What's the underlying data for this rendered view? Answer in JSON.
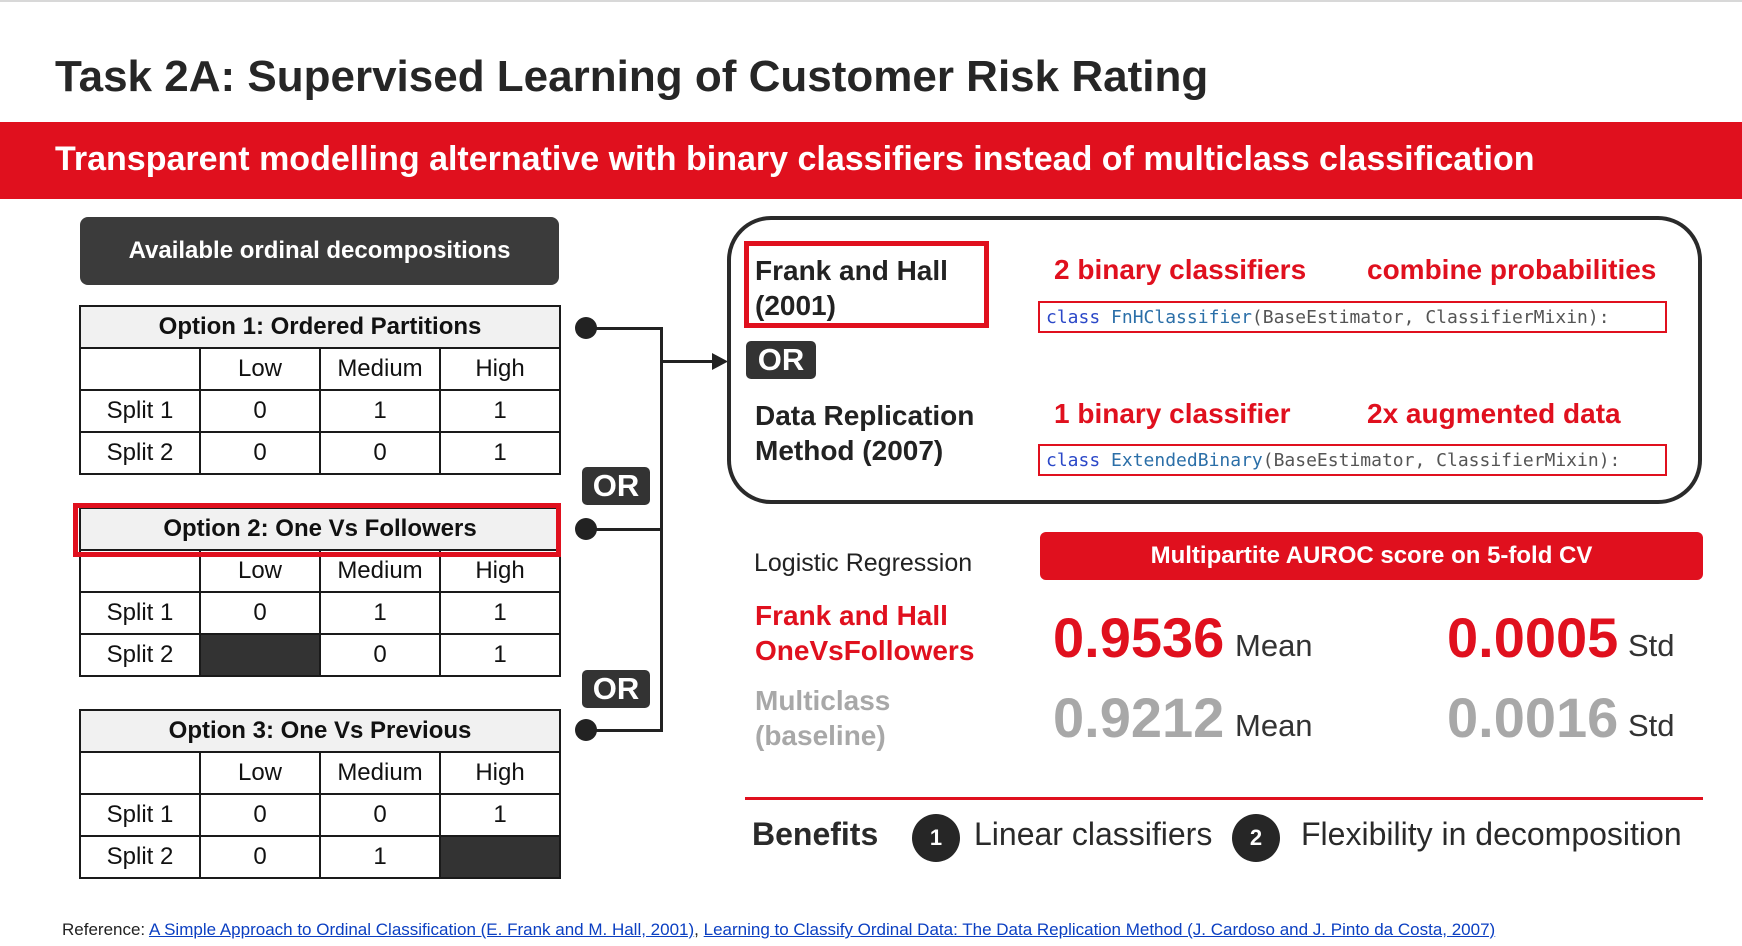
{
  "title": "Task 2A: Supervised Learning of Customer Risk Rating",
  "banner": "Transparent modelling alternative with binary classifiers instead of multiclass classification",
  "decompositions": {
    "header": "Available ordinal decompositions",
    "col_headers": [
      "Low",
      "Medium",
      "High"
    ],
    "options": [
      {
        "title": "Option 1: Ordered Partitions",
        "rows": [
          {
            "label": "Split 1",
            "cells": [
              "0",
              "1",
              "1"
            ]
          },
          {
            "label": "Split 2",
            "cells": [
              "0",
              "0",
              "1"
            ]
          }
        ]
      },
      {
        "title": "Option 2: One Vs Followers",
        "rows": [
          {
            "label": "Split 1",
            "cells": [
              "0",
              "1",
              "1"
            ]
          },
          {
            "label": "Split 2",
            "cells": [
              "",
              "0",
              "1"
            ]
          }
        ]
      },
      {
        "title": "Option 3: One Vs Previous",
        "rows": [
          {
            "label": "Split 1",
            "cells": [
              "0",
              "0",
              "1"
            ]
          },
          {
            "label": "Split 2",
            "cells": [
              "0",
              "1",
              ""
            ]
          }
        ]
      }
    ],
    "or_label": "OR"
  },
  "methods": {
    "frank_hall": {
      "name_line1": "Frank and Hall",
      "name_line2": "(2001)",
      "feature1": "2 binary classifiers",
      "feature2": "combine probabilities",
      "code_kw": "class",
      "code_name": "FnHClassifier",
      "code_rest": "(BaseEstimator, ClassifierMixin):"
    },
    "or_label": "OR",
    "data_replication": {
      "name_line1": "Data Replication",
      "name_line2": "Method (2007)",
      "feature1": "1 binary classifier",
      "feature2": "2x augmented data",
      "code_kw": "class",
      "code_name": "ExtendedBinary",
      "code_rest": "(BaseEstimator, ClassifierMixin):"
    }
  },
  "results": {
    "model_label": "Logistic Regression",
    "score_header": "Multipartite AUROC score on 5-fold CV",
    "rows": [
      {
        "name_line1": "Frank and Hall",
        "name_line2": "OneVsFollowers",
        "mean": "0.9536",
        "mean_label": "Mean",
        "std": "0.0005",
        "std_label": "Std"
      },
      {
        "name_line1": "Multiclass",
        "name_line2": "(baseline)",
        "mean": "0.9212",
        "mean_label": "Mean",
        "std": "0.0016",
        "std_label": "Std"
      }
    ]
  },
  "benefits": {
    "label": "Benefits",
    "items": [
      {
        "num": "1",
        "text": "Linear classifiers"
      },
      {
        "num": "2",
        "text": "Flexibility in decomposition"
      }
    ]
  },
  "reference": {
    "prefix": "Reference:",
    "link1": "A Simple Approach to Ordinal Classification (E. Frank and M. Hall, 2001)",
    "sep": ",",
    "link2": "Learning to Classify Ordinal Data: The Data Replication Method (J. Cardoso and J. Pinto da Costa, 2007)"
  },
  "colors": {
    "accent": "#e0101e",
    "dark": "#333333",
    "muted": "#a8a8a8"
  }
}
